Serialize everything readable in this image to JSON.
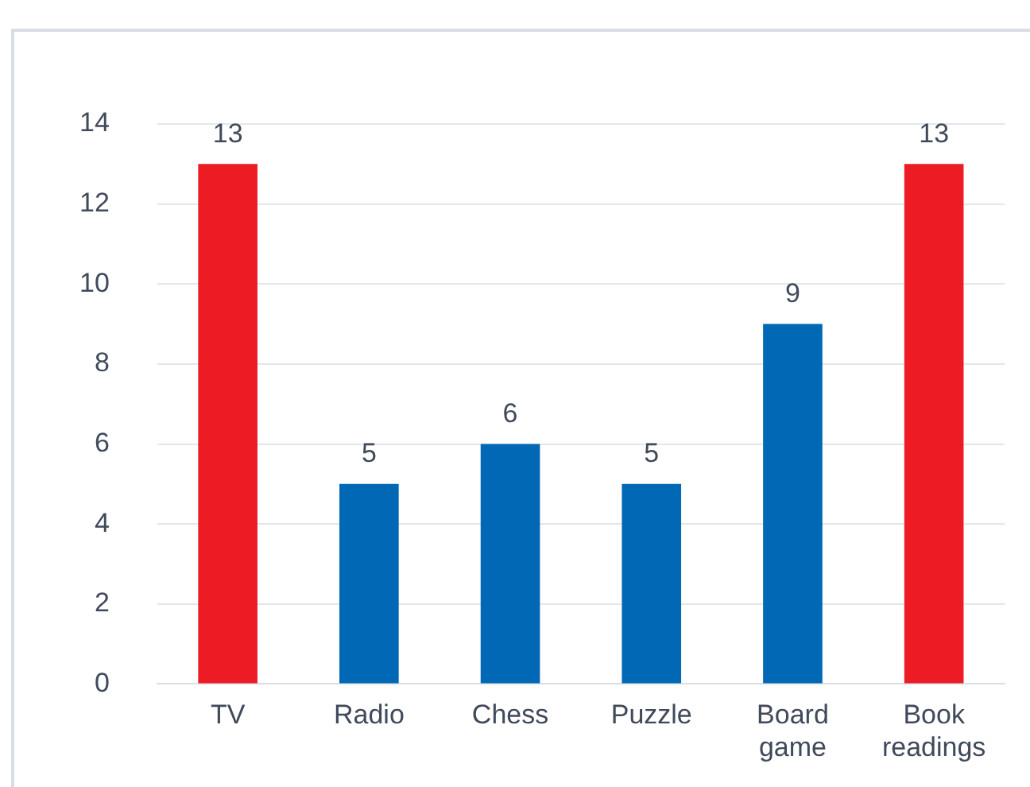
{
  "chart_data": {
    "type": "bar",
    "categories": [
      "TV",
      "Radio",
      "Chess",
      "Puzzle",
      "Board game",
      "Book readings"
    ],
    "values": [
      13,
      5,
      6,
      5,
      9,
      13
    ],
    "colors": [
      "#ed1c24",
      "#0068b4",
      "#0068b4",
      "#0068b4",
      "#0068b4",
      "#ed1c24"
    ],
    "ylim": [
      0,
      14
    ],
    "yticks": [
      0,
      2,
      4,
      6,
      8,
      10,
      12,
      14
    ],
    "grid": "y",
    "data_labels": true
  }
}
